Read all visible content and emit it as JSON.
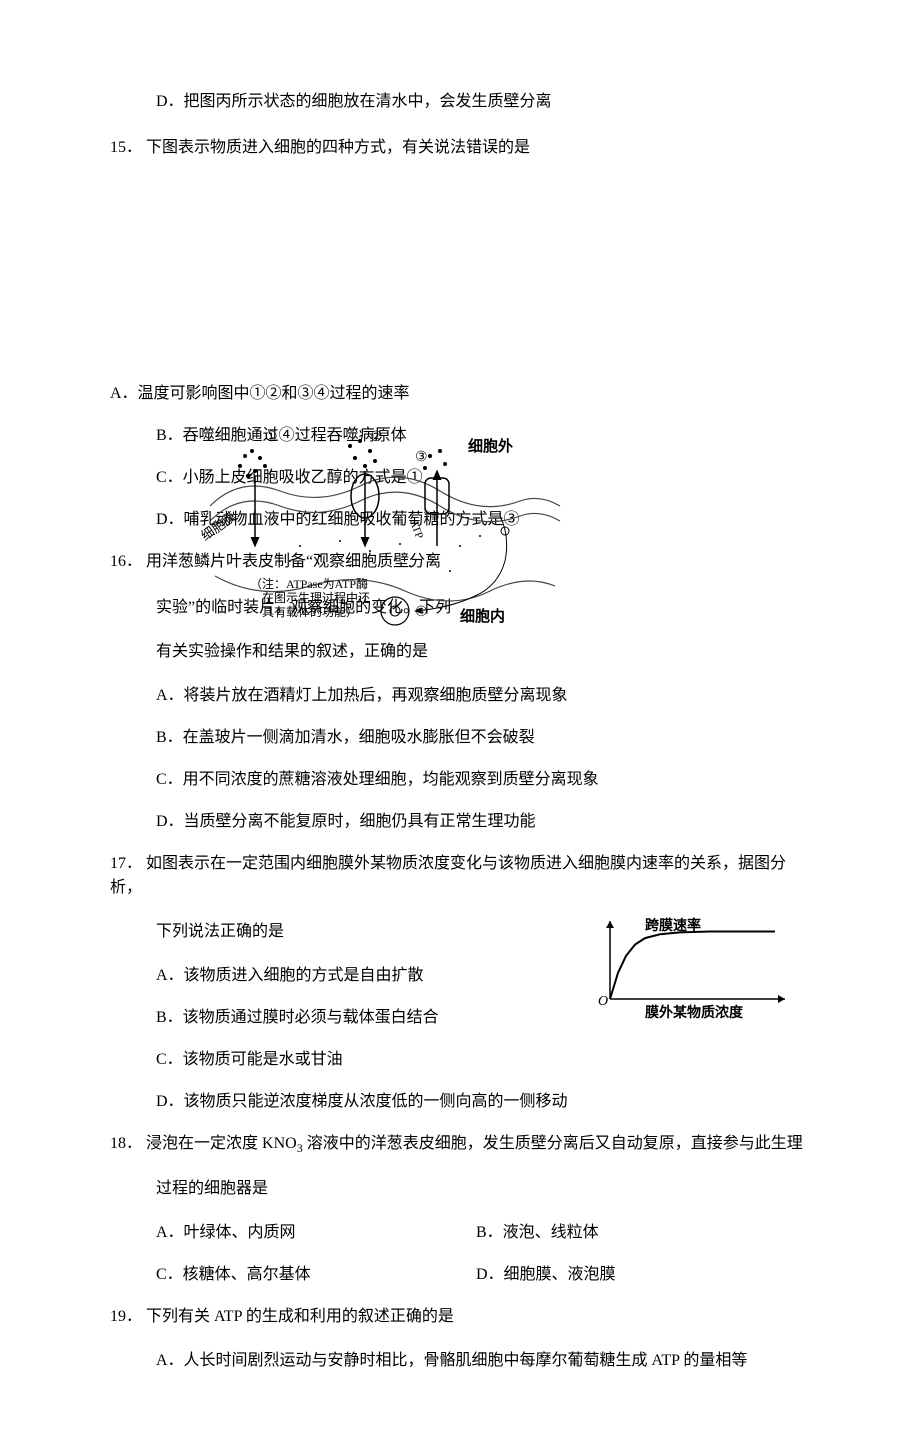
{
  "q14": {
    "opt_d": "D．把图丙所示状态的细胞放在清水中，会发生质壁分离"
  },
  "q15": {
    "stem_num": "15．",
    "stem_text": "下图表示物质进入细胞的四种方式，有关说法错误的是",
    "opt_a": "A．温度可影响图中①②和③④过程的速率",
    "opt_b": "B．吞噬细胞通过④过程吞噬病原体",
    "opt_c": "C．小肠上皮细胞吸收乙醇的方式是①",
    "opt_d": "D．哺乳动物血液中的红细胞吸收葡萄糖的方式是③",
    "fig": {
      "label_out": "细胞外",
      "label_in": "细胞内",
      "label_mem": "细胞膜",
      "label_ATP": "ATP",
      "n1": "①",
      "n2": "②",
      "n3": "③",
      "n4": "④",
      "note1": "（注：ATPase为ATP酶",
      "note2": "在图示生理过程中还",
      "note3": "具有载体的功能）"
    }
  },
  "q16": {
    "stem_num": "16．",
    "stem_line1": "用洋葱鳞片叶表皮制备“观察细胞质壁分离",
    "stem_line2": "实验”的临时装片，观察细胞的变化。下列",
    "stem_line3": "有关实验操作和结果的叙述，正确的是",
    "opt_a": "A．将装片放在酒精灯上加热后，再观察细胞质壁分离现象",
    "opt_b": "B．在盖玻片一侧滴加清水，细胞吸水膨胀但不会破裂",
    "opt_c": "C．用不同浓度的蔗糖溶液处理细胞，均能观察到质壁分离现象",
    "opt_d": "D．当质壁分离不能复原时，细胞仍具有正常生理功能"
  },
  "q17": {
    "stem_num": "17．",
    "stem_line1": "如图表示在一定范围内细胞膜外某物质浓度变化与该物质进入细胞膜内速率的关系，据图分析，",
    "stem_line2": "下列说法正确的是",
    "opt_a": "A．该物质进入细胞的方式是自由扩散",
    "opt_b": "B．该物质通过膜时必须与载体蛋白结合",
    "opt_c": "C．该物质可能是水或甘油",
    "opt_d": "D．该物质只能逆浓度梯度从浓度低的一侧向高的一侧移动",
    "chart": {
      "y_label": "跨膜速率",
      "x_label": "膜外某物质浓度",
      "origin": "O",
      "axis_color": "#000000",
      "curve_color": "#000000",
      "label_fontsize": 14,
      "label_fontweight": "bold",
      "xlim": [
        0,
        170
      ],
      "ylim": [
        0,
        80
      ],
      "curve": [
        [
          0,
          0
        ],
        [
          8,
          28
        ],
        [
          16,
          46
        ],
        [
          25,
          58
        ],
        [
          35,
          65
        ],
        [
          50,
          69
        ],
        [
          70,
          71
        ],
        [
          100,
          72
        ],
        [
          140,
          72
        ],
        [
          165,
          72
        ]
      ]
    }
  },
  "q18": {
    "stem_num": "18．",
    "stem_line1": "浸泡在一定浓度 KNO",
    "stem_sub": "3",
    "stem_line1b": " 溶液中的洋葱表皮细胞，发生质壁分离后又自动复原，直接参与此生理",
    "stem_line2": "过程的细胞器是",
    "opt_a": "A．叶绿体、内质网",
    "opt_b": "B．液泡、线粒体",
    "opt_c": "C．核糖体、高尔基体",
    "opt_d": "D．细胞膜、液泡膜"
  },
  "q19": {
    "stem_num": "19．",
    "stem_text": "下列有关 ATP 的生成和利用的叙述正确的是",
    "opt_a": "A．人长时间剧烈运动与安静时相比，骨骼肌细胞中每摩尔葡萄糖生成 ATP 的量相等"
  }
}
